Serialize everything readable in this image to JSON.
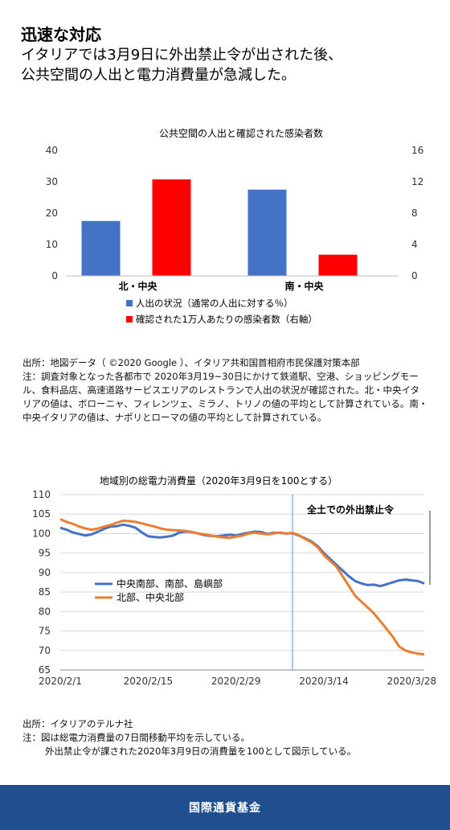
{
  "header": {
    "title": "迅速な対応",
    "subtitle_line1": "イタリアでは3月9日に外出禁止令が出された後、",
    "subtitle_line2": "公共空間の人出と電力消費量が急減した。"
  },
  "chart_data": [
    {
      "type": "bar",
      "title": "公共空間の人出と確認された感染者数",
      "categories": [
        "北・中央",
        "南・中央"
      ],
      "ylim": [
        0,
        40
      ],
      "y_ticks": [
        0,
        10,
        20,
        30,
        40
      ],
      "y2lim": [
        0,
        16
      ],
      "y2_ticks": [
        0,
        4,
        8,
        12,
        16
      ],
      "series": [
        {
          "name": "人出の状況（通常の人出に対する％）",
          "axis": "left",
          "color": "#4472c4",
          "values": [
            17.5,
            27.5
          ]
        },
        {
          "name": "確認された1万人あたりの感染者数（右軸）",
          "axis": "right",
          "color": "#ff0000",
          "values": [
            12.3,
            2.7
          ]
        }
      ],
      "legend": "bottom-left",
      "grid": false
    },
    {
      "type": "line",
      "title": "地域別の総電力消費量（2020年3月9日を100とする）",
      "ylim": [
        65,
        110
      ],
      "y_ticks": [
        65,
        70,
        75,
        80,
        85,
        90,
        95,
        100,
        105,
        110
      ],
      "x_range": [
        "2020-02-01",
        "2020-03-30"
      ],
      "x_ticks": [
        "2020/2/1",
        "2020/2/15",
        "2020/2/29",
        "2020/3/14",
        "2020/3/28"
      ],
      "x_tick_dates": [
        "2020-02-01",
        "2020-02-15",
        "2020-02-29",
        "2020-03-14",
        "2020-03-28"
      ],
      "grid": true,
      "legend": "lower-left",
      "annotation": {
        "date": "2020-03-09",
        "text": "全土での外出禁止令"
      },
      "series": [
        {
          "name": "中央南部、南部、島嶼部",
          "color": "#4472c4",
          "x": [
            "2020-02-01",
            "2020-02-02",
            "2020-02-03",
            "2020-02-04",
            "2020-02-05",
            "2020-02-06",
            "2020-02-07",
            "2020-02-08",
            "2020-02-09",
            "2020-02-10",
            "2020-02-11",
            "2020-02-12",
            "2020-02-13",
            "2020-02-14",
            "2020-02-15",
            "2020-02-16",
            "2020-02-17",
            "2020-02-18",
            "2020-02-19",
            "2020-02-20",
            "2020-02-21",
            "2020-02-22",
            "2020-02-23",
            "2020-02-24",
            "2020-02-25",
            "2020-02-26",
            "2020-02-27",
            "2020-02-28",
            "2020-02-29",
            "2020-03-01",
            "2020-03-02",
            "2020-03-03",
            "2020-03-04",
            "2020-03-05",
            "2020-03-06",
            "2020-03-07",
            "2020-03-08",
            "2020-03-09",
            "2020-03-10",
            "2020-03-11",
            "2020-03-12",
            "2020-03-13",
            "2020-03-14",
            "2020-03-15",
            "2020-03-16",
            "2020-03-17",
            "2020-03-18",
            "2020-03-19",
            "2020-03-20",
            "2020-03-21",
            "2020-03-22",
            "2020-03-23",
            "2020-03-24",
            "2020-03-25",
            "2020-03-26",
            "2020-03-27",
            "2020-03-28",
            "2020-03-29",
            "2020-03-30"
          ],
          "values": [
            101.5,
            101.0,
            100.3,
            99.9,
            99.5,
            99.8,
            100.5,
            101.2,
            101.8,
            101.9,
            102.3,
            102.0,
            101.5,
            100.3,
            99.3,
            99.1,
            99.0,
            99.2,
            99.5,
            100.3,
            100.5,
            100.4,
            100.0,
            99.6,
            99.4,
            99.3,
            99.5,
            99.7,
            99.5,
            99.9,
            100.2,
            100.5,
            100.4,
            99.9,
            100.2,
            100.2,
            100.0,
            100.1,
            99.5,
            98.8,
            98.0,
            96.8,
            95.0,
            93.5,
            92.0,
            90.5,
            89.0,
            87.8,
            87.2,
            86.8,
            86.9,
            86.5,
            87.0,
            87.5,
            88.0,
            88.2,
            88.0,
            87.8,
            87.2
          ]
        },
        {
          "name": "北部、中央北部",
          "color": "#ed7d31",
          "x": [
            "2020-02-01",
            "2020-02-02",
            "2020-02-03",
            "2020-02-04",
            "2020-02-05",
            "2020-02-06",
            "2020-02-07",
            "2020-02-08",
            "2020-02-09",
            "2020-02-10",
            "2020-02-11",
            "2020-02-12",
            "2020-02-13",
            "2020-02-14",
            "2020-02-15",
            "2020-02-16",
            "2020-02-17",
            "2020-02-18",
            "2020-02-19",
            "2020-02-20",
            "2020-02-21",
            "2020-02-22",
            "2020-02-23",
            "2020-02-24",
            "2020-02-25",
            "2020-02-26",
            "2020-02-27",
            "2020-02-28",
            "2020-02-29",
            "2020-03-01",
            "2020-03-02",
            "2020-03-03",
            "2020-03-04",
            "2020-03-05",
            "2020-03-06",
            "2020-03-07",
            "2020-03-08",
            "2020-03-09",
            "2020-03-10",
            "2020-03-11",
            "2020-03-12",
            "2020-03-13",
            "2020-03-14",
            "2020-03-15",
            "2020-03-16",
            "2020-03-17",
            "2020-03-18",
            "2020-03-19",
            "2020-03-20",
            "2020-03-21",
            "2020-03-22",
            "2020-03-23",
            "2020-03-24",
            "2020-03-25",
            "2020-03-26",
            "2020-03-27",
            "2020-03-28",
            "2020-03-29",
            "2020-03-30"
          ],
          "values": [
            103.7,
            103.0,
            102.5,
            101.8,
            101.3,
            101.0,
            101.3,
            101.8,
            102.2,
            102.8,
            103.3,
            103.2,
            103.0,
            102.6,
            102.2,
            101.8,
            101.3,
            101.0,
            100.9,
            100.8,
            100.7,
            100.4,
            100.0,
            99.8,
            99.5,
            99.2,
            99.0,
            98.9,
            99.2,
            99.5,
            100.0,
            100.2,
            100.0,
            99.8,
            100.0,
            100.3,
            100.0,
            100.2,
            99.6,
            98.6,
            97.8,
            96.5,
            94.5,
            93.0,
            91.5,
            89.0,
            86.5,
            84.0,
            82.5,
            81.0,
            79.5,
            77.5,
            75.5,
            73.5,
            71.0,
            70.0,
            69.5,
            69.2,
            69.0
          ]
        }
      ]
    }
  ],
  "notes1": {
    "line1": "出所：地図データ（ ©2020 Google ）、イタリア共和国首相府市民保護対策本部",
    "line2": "注：調査対象となった各都市で 2020年3月19~30日にかけて鉄道駅、空港、ショッピングモール、食料品店、高速道路サービスエリアのレストランで人出の状況が確認された。北・中央イタリアの値は、ボローニャ、フィレンツェ、ミラノ、トリノの値の平均として計算されている。南・中央イタリアの値は、ナポリとローマの値の平均として計算されている。"
  },
  "notes2": {
    "line1": "出所：イタリアのテルナ社",
    "line2": "注：図は総電力消費量の7日間移動平均を示している。",
    "line3": "外出禁止令が課された2020年3月9日の消費量を100として図示している。"
  },
  "footer": {
    "org": "国際通貨基金"
  }
}
